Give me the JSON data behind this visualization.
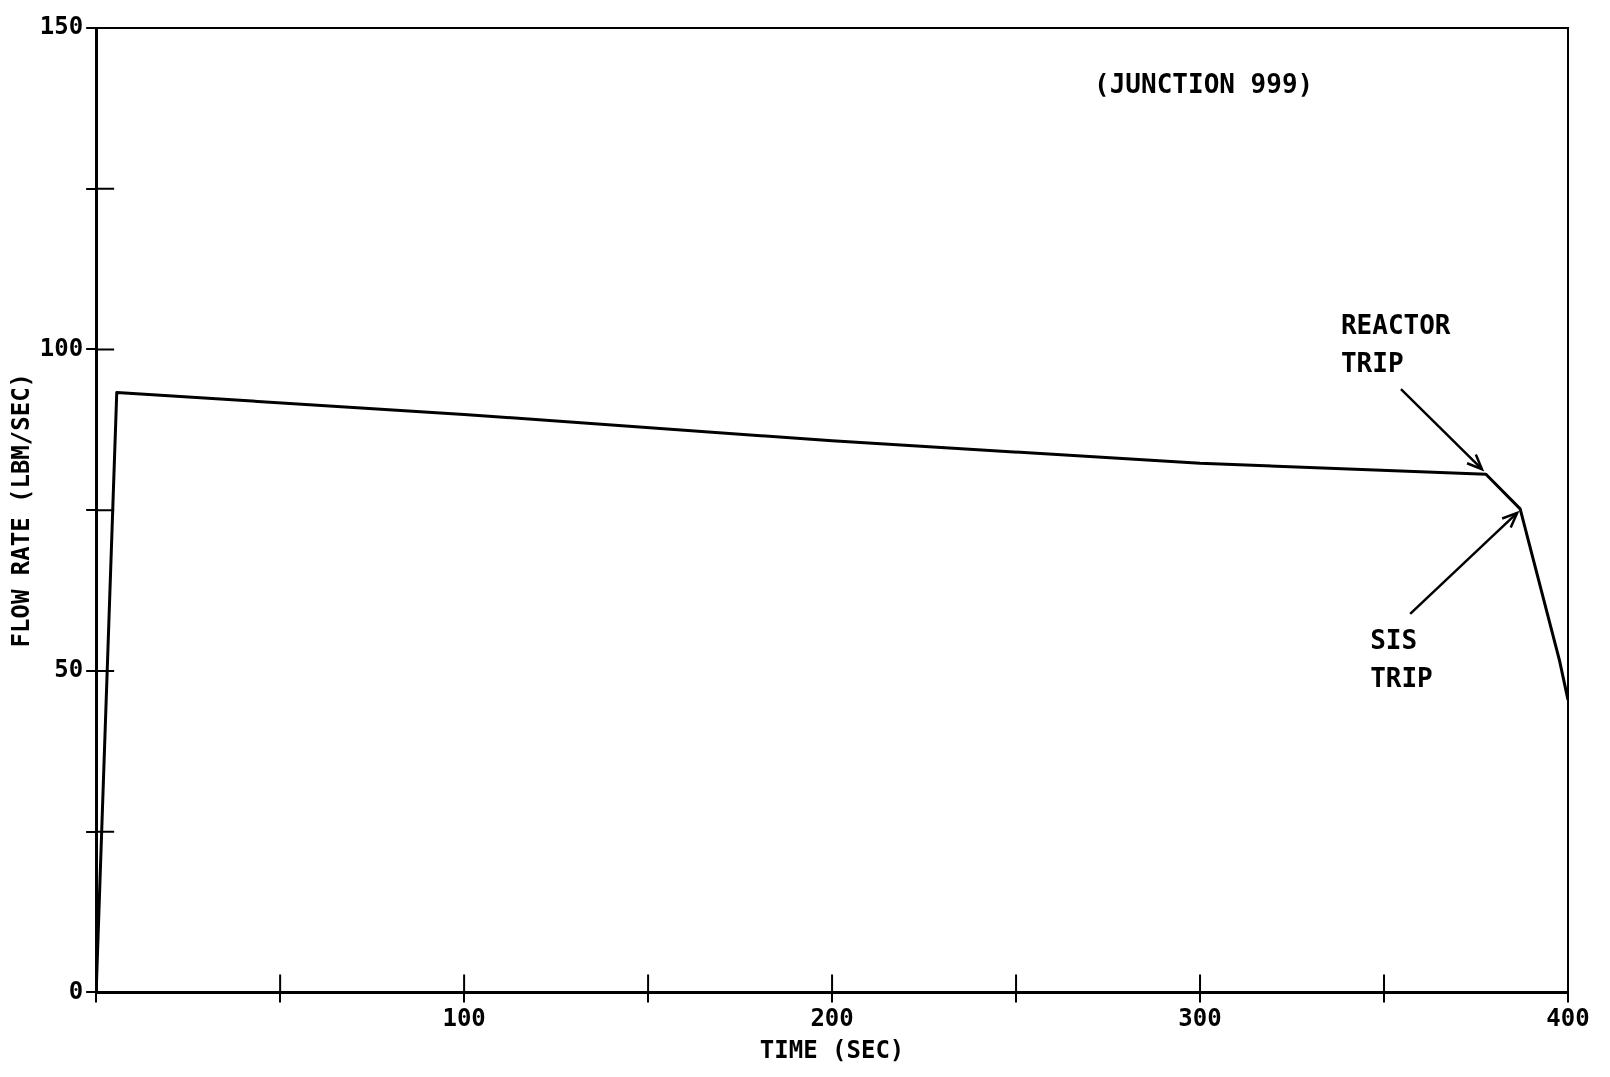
{
  "chart_data": {
    "type": "line",
    "xlabel": "TIME (SEC)",
    "ylabel": "FLOW RATE (LBM/SEC)",
    "x": [
      0,
      5.6,
      100,
      200,
      300,
      377.7,
      387,
      397.7,
      400
    ],
    "series": [
      {
        "color": "#000000",
        "values": [
          0,
          93.3,
          89.9,
          85.8,
          82.3,
          80.6,
          75.2,
          51.6,
          45.5
        ]
      }
    ],
    "xlim": [
      0,
      400
    ],
    "xticks": [
      {
        "value": 0,
        "label": null
      },
      {
        "value": 50,
        "label": null
      },
      100,
      {
        "value": 150,
        "label": null
      },
      200,
      {
        "value": 250,
        "label": null
      },
      300,
      {
        "value": 350,
        "label": null
      },
      400
    ],
    "ylim": [
      0,
      150
    ],
    "yticks": [
      0,
      {
        "value": 25,
        "label": null
      },
      50,
      {
        "value": 75,
        "label": null
      },
      100,
      {
        "value": 125,
        "label": null
      },
      150
    ],
    "annotations": [
      "(JUNCTION 999)",
      {
        "text": "REACTOR TRIP",
        "x": 377.7,
        "y": 80.6
      },
      {
        "text": "SIS TRIP",
        "x": 387,
        "y": 75.2
      }
    ],
    "grid": false,
    "legend": false,
    "marker": "none",
    "line_style": "solid"
  }
}
